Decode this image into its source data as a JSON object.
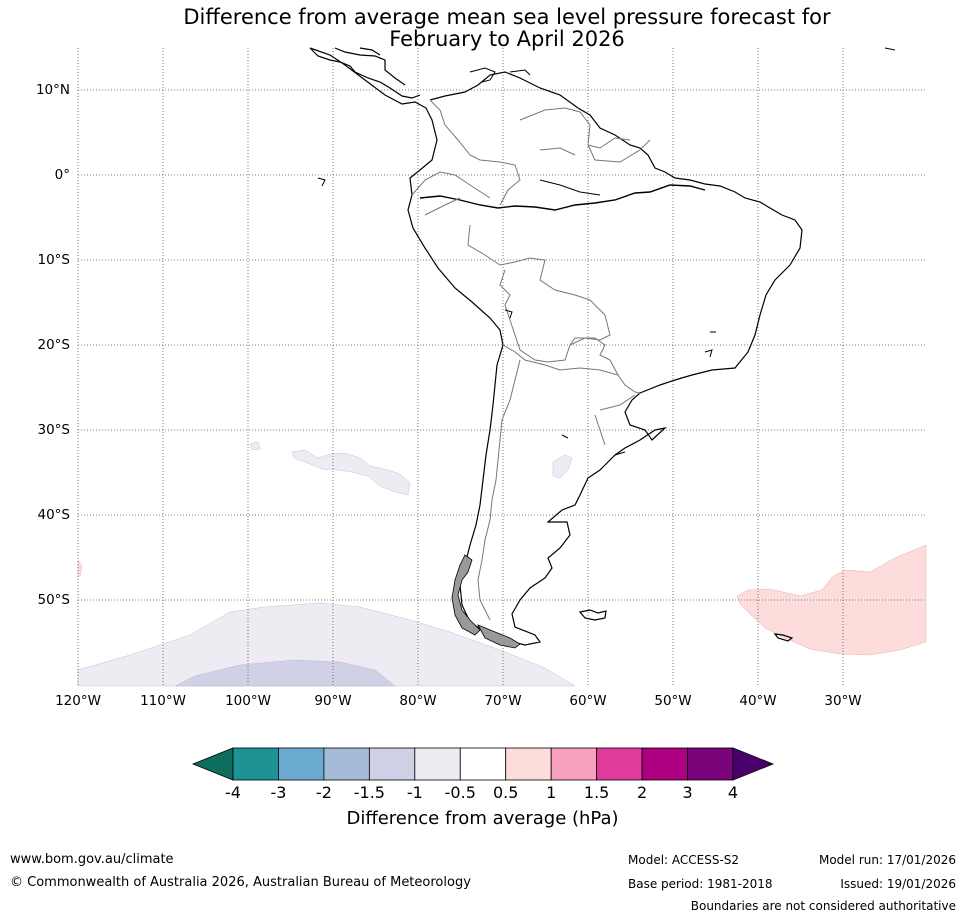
{
  "title": {
    "line1": "Difference from average mean sea level pressure forecast for",
    "line2": "February to April 2026"
  },
  "map": {
    "lat_labels": [
      "10°N",
      "0°",
      "10°S",
      "20°S",
      "30°S",
      "40°S",
      "50°S"
    ],
    "lon_labels": [
      "120°W",
      "110°W",
      "100°W",
      "90°W",
      "80°W",
      "70°W",
      "60°W",
      "50°W",
      "40°W",
      "30°W"
    ],
    "anomaly_regions": [
      {
        "name": "southern-pacific-negative",
        "level": "-1 to -0.5"
      },
      {
        "name": "southern-pacific-core",
        "level": "-1.5 to -1"
      },
      {
        "name": "south-atlantic-positive",
        "level": "0.5 to 1"
      }
    ]
  },
  "colorbar": {
    "ticks": [
      "-4",
      "-3",
      "-2",
      "-1.5",
      "-1",
      "-0.5",
      "0.5",
      "1",
      "1.5",
      "2",
      "3",
      "4"
    ],
    "colors": [
      "#0e6e5e",
      "#1f9296",
      "#6aaad0",
      "#a6bbd7",
      "#d0d0e6",
      "#efebf3",
      "#ffffff",
      "#fddcdc",
      "#f8a1bd",
      "#df3a9c",
      "#ae0181",
      "#7a037a",
      "#4a006a"
    ],
    "label": "Difference from average (hPa)"
  },
  "footer": {
    "website": "www.bom.gov.au/climate",
    "copyright": "© Commonwealth of Australia 2026, Australian Bureau of Meteorology",
    "model": "Model: ACCESS-S2",
    "base_period": "Base period: 1981-2018",
    "model_run": "Model run: 17/01/2026",
    "issued": "Issued: 19/01/2026",
    "disclaimer": "Boundaries are not considered authoritative"
  }
}
